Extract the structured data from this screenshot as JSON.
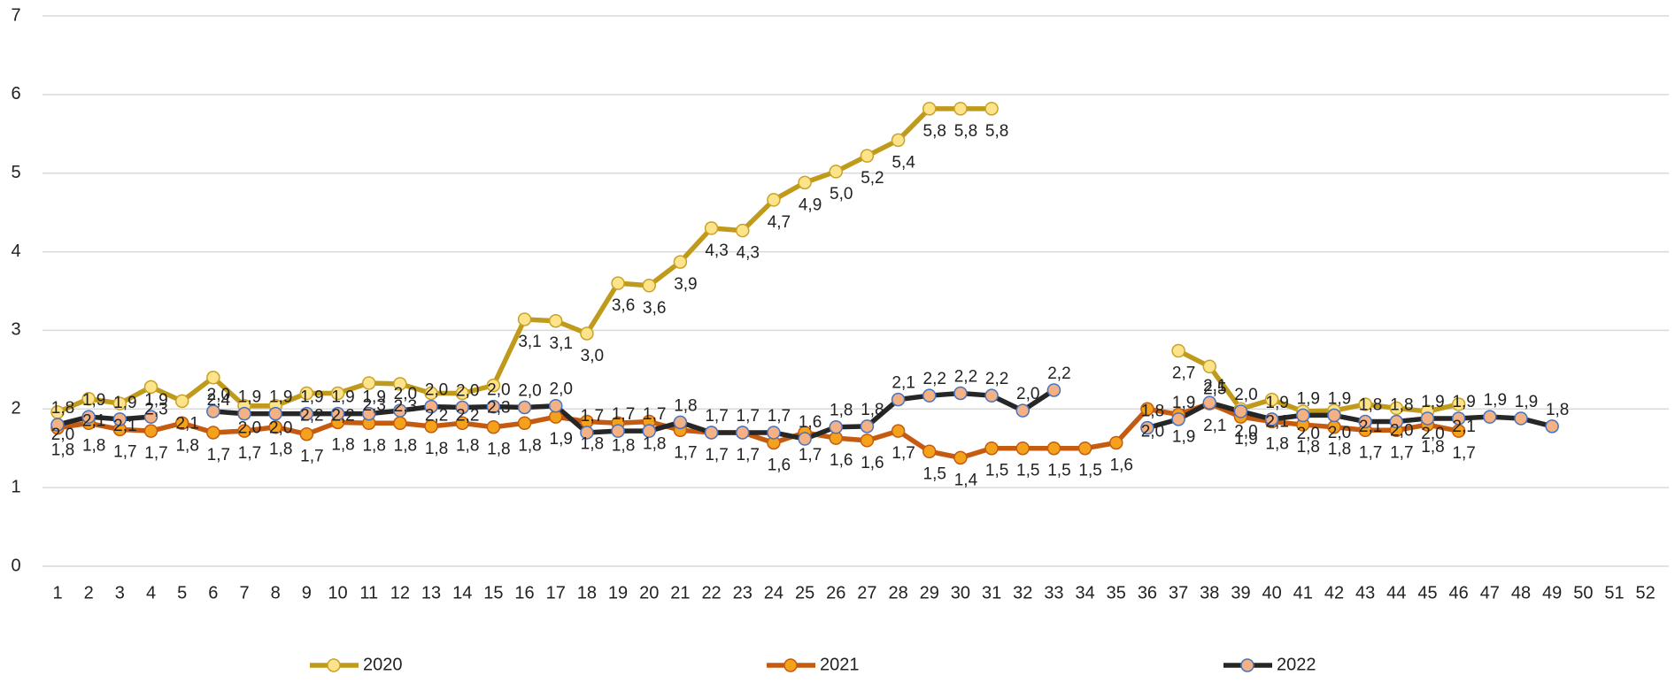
{
  "chart_data": {
    "type": "line",
    "categories": [
      "1",
      "2",
      "3",
      "4",
      "5",
      "6",
      "7",
      "8",
      "9",
      "10",
      "11",
      "12",
      "13",
      "14",
      "15",
      "16",
      "17",
      "18",
      "19",
      "20",
      "21",
      "22",
      "23",
      "24",
      "25",
      "26",
      "27",
      "28",
      "29",
      "30",
      "31",
      "32",
      "33",
      "34",
      "35",
      "36",
      "37",
      "38",
      "39",
      "40",
      "41",
      "42",
      "43",
      "44",
      "45",
      "46",
      "47",
      "48",
      "49",
      "50",
      "51",
      "52"
    ],
    "ylim": [
      0,
      7
    ],
    "yticks": [
      0,
      1,
      2,
      3,
      4,
      5,
      6,
      7
    ],
    "grid": true,
    "legend": "bottom",
    "series": [
      {
        "name": "2020",
        "color": "#c09a1a",
        "marker_fill": "#fde38a",
        "marker_edge": "#c9a227",
        "values": [
          1.96,
          2.13,
          2.07,
          2.28,
          2.1,
          2.4,
          2.04,
          2.04,
          2.2,
          2.2,
          2.33,
          2.32,
          2.2,
          2.2,
          2.3,
          3.14,
          3.12,
          2.96,
          3.6,
          3.57,
          3.87,
          4.3,
          4.27,
          4.66,
          4.88,
          5.02,
          5.22,
          5.42,
          5.82,
          5.82,
          5.82,
          null,
          null,
          null,
          null,
          null,
          2.74,
          2.54,
          2.0,
          2.12,
          1.97,
          1.98,
          2.06,
          2.01,
          1.97,
          2.06,
          null,
          null,
          null,
          null,
          null,
          null
        ],
        "value_labels": [
          "2,0",
          "2,1",
          "2,1",
          "2,3",
          "2,1",
          "2,4",
          "2,0",
          "2,0",
          "2,2",
          "2,2",
          "2,3",
          "2,3",
          "2,2",
          "2,2",
          "2,3",
          "3,1",
          "3,1",
          "3,0",
          "3,6",
          "3,6",
          "3,9",
          "4,3",
          "4,3",
          "4,7",
          "4,9",
          "5,0",
          "5,2",
          "5,4",
          "5,8",
          "5,8",
          "5,8",
          null,
          null,
          null,
          null,
          null,
          "2,7",
          "2,5",
          "2,0",
          "2,1",
          "2,0",
          "2,0",
          "2,1",
          "2,0",
          "2,0",
          "2,1",
          null,
          null,
          null,
          null,
          null,
          null
        ]
      },
      {
        "name": "2021",
        "color": "#c55a11",
        "marker_fill": "#f4a21c",
        "marker_edge": "#c55a11",
        "values": [
          1.76,
          1.82,
          1.74,
          1.72,
          1.82,
          1.7,
          1.72,
          1.77,
          1.68,
          1.83,
          1.82,
          1.82,
          1.78,
          1.82,
          1.77,
          1.82,
          1.9,
          1.84,
          1.82,
          1.84,
          1.73,
          1.7,
          1.7,
          1.57,
          1.7,
          1.63,
          1.6,
          1.72,
          1.46,
          1.38,
          1.5,
          1.5,
          1.5,
          1.5,
          1.57,
          2.0,
          1.93,
          2.07,
          1.9,
          1.84,
          1.8,
          1.77,
          1.73,
          1.73,
          1.8,
          1.72,
          null,
          null,
          null,
          null,
          null,
          null
        ],
        "value_labels": [
          "1,8",
          "1,8",
          "1,7",
          "1,7",
          "1,8",
          "1,7",
          "1,7",
          "1,8",
          "1,7",
          "1,8",
          "1,8",
          "1,8",
          "1,8",
          "1,8",
          "1,8",
          "1,8",
          "1,9",
          "1,8",
          "1,8",
          "1,8",
          "1,7",
          "1,7",
          "1,7",
          "1,6",
          "1,7",
          "1,6",
          "1,6",
          "1,7",
          "1,5",
          "1,4",
          "1,5",
          "1,5",
          "1,5",
          "1,5",
          "1,6",
          "2,0",
          "1,9",
          "2,1",
          "1,9",
          "1,8",
          "1,8",
          "1,8",
          "1,7",
          "1,7",
          "1,8",
          "1,7",
          null,
          null,
          null,
          null,
          null,
          null
        ]
      },
      {
        "name": "2022",
        "color": "#262626",
        "marker_fill": "#f4b183",
        "marker_edge": "#4472c4",
        "values": [
          1.8,
          1.9,
          1.87,
          1.9,
          null,
          1.97,
          1.94,
          1.94,
          1.94,
          1.94,
          1.94,
          1.98,
          2.03,
          2.02,
          2.03,
          2.02,
          2.04,
          1.7,
          1.72,
          1.72,
          1.83,
          1.7,
          1.7,
          1.7,
          1.62,
          1.77,
          1.78,
          2.12,
          2.17,
          2.2,
          2.17,
          1.98,
          2.24,
          null,
          null,
          1.76,
          1.87,
          2.08,
          1.97,
          1.87,
          1.92,
          1.92,
          1.84,
          1.84,
          1.88,
          1.88,
          1.9,
          1.88,
          1.78,
          null,
          null,
          null
        ],
        "value_labels": [
          "1,8",
          "1,9",
          "1,9",
          "1,9",
          null,
          "2,0",
          "1,9",
          "1,9",
          "1,9",
          "1,9",
          "1,9",
          "2,0",
          "2,0",
          "2,0",
          "2,0",
          "2,0",
          "2,0",
          "1,7",
          "1,7",
          "1,7",
          "1,8",
          "1,7",
          "1,7",
          "1,7",
          "1,6",
          "1,8",
          "1,8",
          "2,1",
          "2,2",
          "2,2",
          "2,2",
          "2,0",
          "2,2",
          null,
          null,
          "1,8",
          "1,9",
          "2,1",
          "2,0",
          "1,9",
          "1,9",
          "1,9",
          "1,8",
          "1,8",
          "1,9",
          "1,9",
          "1,9",
          "1,9",
          "1,8",
          null,
          null,
          null
        ]
      }
    ]
  }
}
